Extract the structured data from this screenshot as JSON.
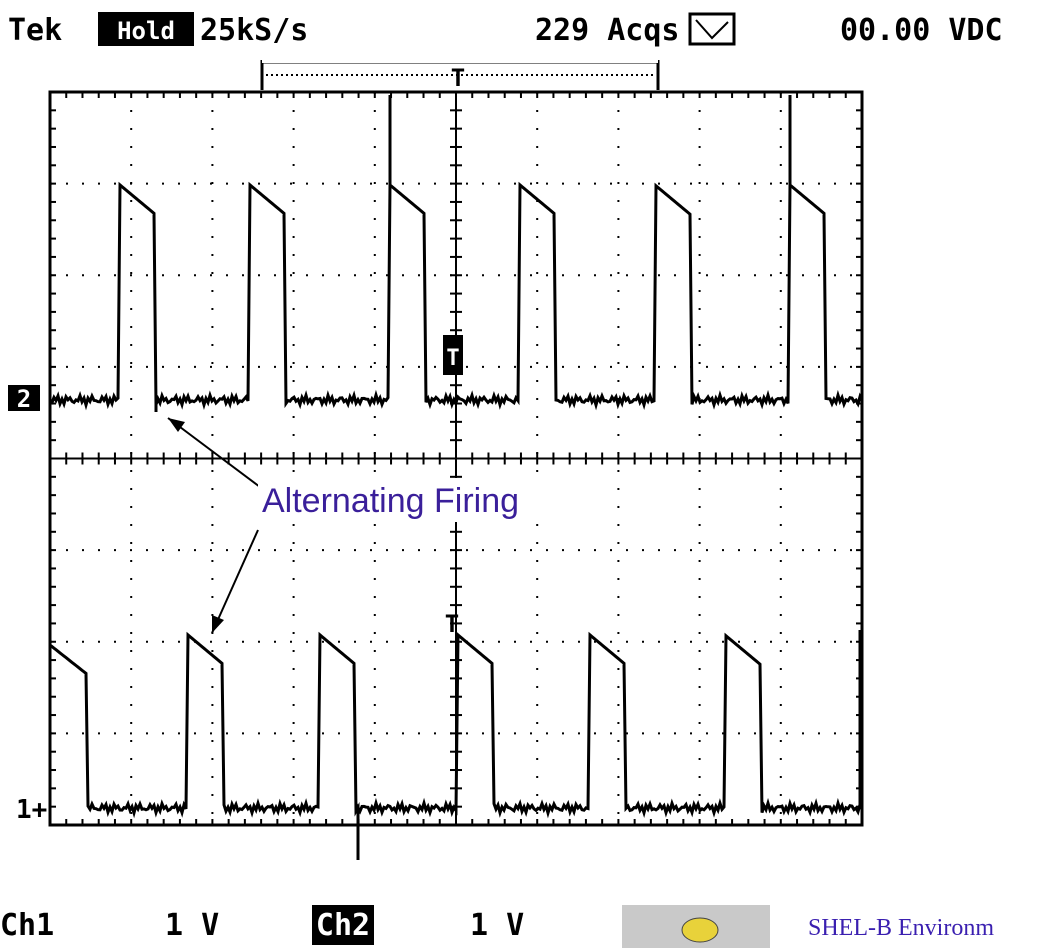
{
  "header": {
    "brand": "Tek",
    "mode": "Hold",
    "rate": "25kS/s",
    "acquisitions": "229 Acqs",
    "readout": "00.00 VDC"
  },
  "markers": {
    "trigger_top": "T",
    "channel2": "2",
    "trigger_position": "T",
    "trigger_level": "T",
    "channel1": "1+"
  },
  "annotation": "Alternating Firing",
  "footer": {
    "ch1": "Ch1",
    "ch1_scale": "1 V",
    "ch2": "Ch2",
    "ch2_scale": "1 V",
    "caption": "SHEL-B Environm"
  }
}
